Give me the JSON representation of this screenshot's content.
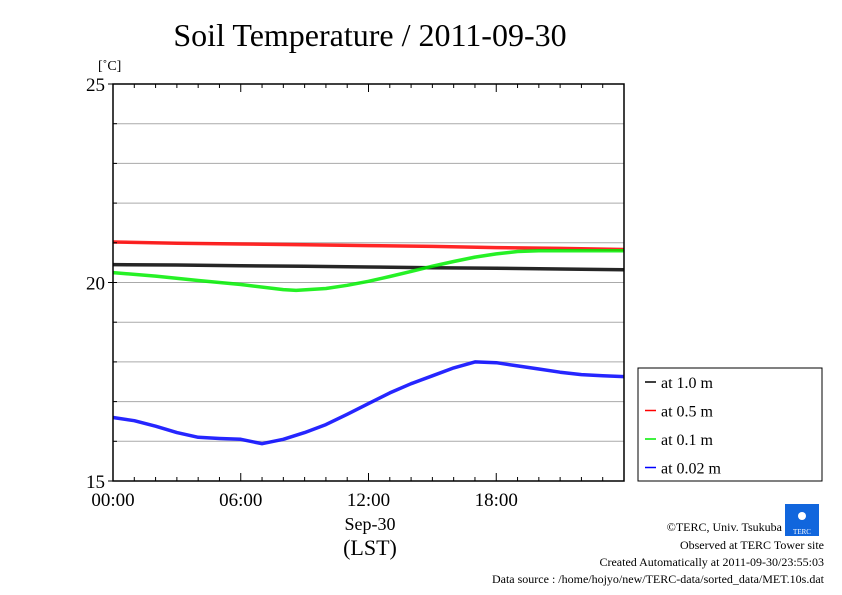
{
  "chart_data": {
    "type": "line",
    "title": "Soil Temperature / 2011-09-30",
    "ylabel": "[˚C]",
    "xlabel_date": "Sep-30",
    "xlabel": "(LST)",
    "ylim": [
      15,
      25
    ],
    "xlim_hours": [
      0,
      24
    ],
    "yticks": [
      {
        "v": 15,
        "label": "15"
      },
      {
        "v": 20,
        "label": "20"
      },
      {
        "v": 25,
        "label": "25"
      }
    ],
    "xticks": [
      {
        "v": 0,
        "label": "00:00"
      },
      {
        "v": 6,
        "label": "06:00"
      },
      {
        "v": 12,
        "label": "12:00"
      },
      {
        "v": 18,
        "label": "18:00"
      }
    ],
    "grid": true,
    "legend_position": "right",
    "series": [
      {
        "name": "at 1.0 m",
        "color": "#000000",
        "x": [
          0,
          3,
          6,
          9,
          12,
          15,
          18,
          21,
          24
        ],
        "values": [
          20.45,
          20.44,
          20.42,
          20.41,
          20.39,
          20.37,
          20.36,
          20.34,
          20.32
        ]
      },
      {
        "name": "at 0.5 m",
        "color": "#ff0000",
        "x": [
          0,
          3,
          6,
          9,
          12,
          15,
          18,
          21,
          24
        ],
        "values": [
          21.02,
          20.99,
          20.97,
          20.95,
          20.93,
          20.91,
          20.88,
          20.86,
          20.83
        ]
      },
      {
        "name": "at 0.1 m",
        "color": "#00ee00",
        "x": [
          0,
          2,
          4,
          6,
          8,
          8.6,
          10,
          11,
          12,
          13,
          14,
          15,
          16,
          17,
          18,
          19,
          20,
          22,
          24
        ],
        "values": [
          20.25,
          20.16,
          20.05,
          19.95,
          19.82,
          19.8,
          19.85,
          19.93,
          20.03,
          20.15,
          20.28,
          20.41,
          20.53,
          20.64,
          20.72,
          20.78,
          20.8,
          20.8,
          20.8
        ]
      },
      {
        "name": "at 0.02 m",
        "color": "#0000ff",
        "x": [
          0,
          1,
          2,
          3,
          4,
          5,
          6,
          7,
          8,
          9,
          10,
          11,
          12,
          13,
          14,
          15,
          16,
          17,
          18,
          19,
          20,
          21,
          22,
          23,
          24
        ],
        "values": [
          16.6,
          16.52,
          16.38,
          16.22,
          16.1,
          16.07,
          16.05,
          15.94,
          16.05,
          16.22,
          16.42,
          16.68,
          16.95,
          17.22,
          17.45,
          17.65,
          17.85,
          18.0,
          17.98,
          17.9,
          17.82,
          17.74,
          17.68,
          17.65,
          17.63
        ]
      }
    ]
  },
  "credits": {
    "copyright": "©TERC, Univ. Tsukuba",
    "observed": "Observed at TERC Tower site",
    "created": "Created Automatically at 2011-09-30/23:55:03",
    "source": "Data source : /home/hojyo/new/TERC-data/sorted_data/MET.10s.dat",
    "logo_text": "TERC"
  }
}
